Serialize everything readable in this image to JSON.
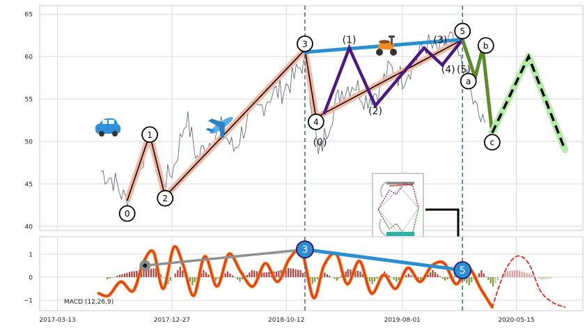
{
  "colors": {
    "price": "#4d5a6b",
    "grid": "#d9d9d9",
    "frame": "#c8c8c8",
    "vline": "#4f6d8a",
    "trend_main": "#000000",
    "trend_glow": "#f3b9a4",
    "channel_blue": "#2a8fd1",
    "wave_purple": "#4b1a7f",
    "wave_green": "#5e8a2e",
    "forecast_glow": "#b5ecab",
    "macd_line": "#d93a2c",
    "macd_glow": "#f0921e",
    "hist_pos": "#a52a2a",
    "hist_neg": "#6b8e23"
  },
  "icons": [
    "car-emoji-icon",
    "airplane-emoji-icon",
    "scooter-emoji-icon",
    "elliott-wave-thumbnail-icon"
  ],
  "chart_data": [
    {
      "type": "line",
      "panel": "price",
      "ylim": [
        39.5,
        66
      ],
      "yticks": [
        "40",
        "45",
        "50",
        "55",
        "60",
        "65"
      ],
      "grid": true,
      "price_series": {
        "x": [
          "2017-07-01",
          "2017-08-01",
          "2017-09-01",
          "2017-10-01",
          "2017-11-01",
          "2017-12-01",
          "2018-01-01",
          "2018-02-01",
          "2018-03-01",
          "2018-04-01",
          "2018-05-01",
          "2018-06-01",
          "2018-07-01",
          "2018-08-01",
          "2018-09-01",
          "2018-10-01",
          "2018-11-01",
          "2018-12-01",
          "2019-01-01",
          "2019-02-01",
          "2019-03-01",
          "2019-04-01",
          "2019-05-01",
          "2019-06-01",
          "2019-07-01",
          "2019-08-01",
          "2019-09-01",
          "2019-10-01",
          "2019-11-01",
          "2019-12-01",
          "2020-01-01",
          "2020-02-01",
          "2020-03-01"
        ],
        "values": [
          46.5,
          45.5,
          43.0,
          46.5,
          50.5,
          44.5,
          47.0,
          53.0,
          48.0,
          50.0,
          51.5,
          49.0,
          52.0,
          53.5,
          55.5,
          56.0,
          57.5,
          60.0,
          48.0,
          53.0,
          56.0,
          57.0,
          55.0,
          56.0,
          58.5,
          57.5,
          59.5,
          61.5,
          60.5,
          62.0,
          58.5,
          54.0,
          51.0
        ]
      },
      "waves": [
        {
          "name": "primary",
          "x": [
            "2017-09-05",
            "2017-11-01",
            "2017-12-10",
            "2018-11-28",
            "2018-12-26",
            "2019-12-31"
          ],
          "values": [
            43.0,
            50.8,
            43.5,
            60.8,
            52.8,
            62.0
          ]
        },
        {
          "name": "channel",
          "x": [
            "2018-11-28",
            "2019-12-31"
          ],
          "values": [
            60.5,
            62.0
          ]
        },
        {
          "name": "wave-5-impulse",
          "x": [
            "2019-01-15",
            "2019-03-20",
            "2019-05-25",
            "2019-09-25",
            "2019-11-10",
            "2019-12-31"
          ],
          "values": [
            53.2,
            61.0,
            54.2,
            61.0,
            59.0,
            62.0
          ]
        },
        {
          "name": "correction-abc",
          "x": [
            "2019-12-31",
            "2020-02-01",
            "2020-02-20",
            "2020-03-15"
          ],
          "values": [
            62.0,
            57.5,
            61.0,
            51.0
          ]
        },
        {
          "name": "forecast",
          "x": [
            "2020-03-15",
            "2020-06-15",
            "2020-09-15"
          ],
          "values": [
            51.0,
            60.0,
            49.0
          ]
        }
      ],
      "wave_labels": [
        {
          "text": "0",
          "x": "2017-09-05",
          "y": 41.5,
          "circled": true
        },
        {
          "text": "1",
          "x": "2017-11-01",
          "y": 50.8,
          "circled": true
        },
        {
          "text": "2",
          "x": "2017-12-10",
          "y": 43.3,
          "circled": true
        },
        {
          "text": "3",
          "x": "2018-11-28",
          "y": 61.5,
          "circled": true
        },
        {
          "text": "4",
          "x": "2018-12-26",
          "y": 52.3,
          "circled": true
        },
        {
          "text": "5",
          "x": "2019-12-31",
          "y": 63.0,
          "circled": true
        },
        {
          "text": "(0)",
          "x": "2019-01-05",
          "y": 49.9,
          "circled": false
        },
        {
          "text": "(1)",
          "x": "2019-03-20",
          "y": 62.0,
          "circled": false
        },
        {
          "text": "(2)",
          "x": "2019-05-25",
          "y": 53.6,
          "circled": false
        },
        {
          "text": "(3)",
          "x": "2019-11-05",
          "y": 62.0,
          "circled": false
        },
        {
          "text": "(4)",
          "x": "2019-11-25",
          "y": 58.5,
          "circled": false
        },
        {
          "text": "(5)",
          "x": "2020-01-03",
          "y": 58.5,
          "circled": false
        },
        {
          "text": "a",
          "x": "2020-01-15",
          "y": 57.1,
          "circled": true
        },
        {
          "text": "b",
          "x": "2020-02-28",
          "y": 61.3,
          "circled": true
        },
        {
          "text": "c",
          "x": "2020-03-15",
          "y": 49.9,
          "circled": true
        }
      ],
      "vlines": [
        "2018-11-28",
        "2019-12-31"
      ]
    },
    {
      "type": "line",
      "panel": "macd",
      "ylim": [
        -1.45,
        1.75
      ],
      "yticks": [
        "1",
        "0",
        "−1"
      ],
      "xticks": [
        "2017-03-13",
        "2017-12-27",
        "2018-10-12",
        "2019-08-01",
        "2020-05-15"
      ],
      "macd_label": "MACD (12,26,9)",
      "macd": {
        "x": [
          "2017-06-25",
          "2017-07-20",
          "2017-08-20",
          "2017-09-20",
          "2017-10-15",
          "2017-11-10",
          "2017-12-05",
          "2018-01-01",
          "2018-01-25",
          "2018-02-20",
          "2018-03-20",
          "2018-04-20",
          "2018-05-20",
          "2018-06-20",
          "2018-07-20",
          "2018-08-20",
          "2018-09-20",
          "2018-10-20",
          "2018-11-20",
          "2018-12-20",
          "2019-01-15",
          "2019-02-15",
          "2019-03-15",
          "2019-04-15",
          "2019-05-15",
          "2019-06-15",
          "2019-07-15",
          "2019-08-15",
          "2019-09-15",
          "2019-10-15",
          "2019-11-15",
          "2019-12-15",
          "2020-01-15",
          "2020-02-15",
          "2020-03-15"
        ],
        "values": [
          -0.7,
          -0.8,
          -0.2,
          -0.6,
          0.6,
          1.1,
          -0.5,
          1.3,
          0.5,
          -0.8,
          0.9,
          -0.4,
          1.0,
          0.2,
          -0.4,
          0.6,
          -0.2,
          0.8,
          1.1,
          -0.9,
          0.5,
          1.0,
          -0.3,
          0.7,
          -0.7,
          0.1,
          -0.5,
          0.4,
          -0.2,
          0.5,
          0.6,
          -0.3,
          0.4,
          -0.5,
          -1.3
        ]
      },
      "histogram": {
        "x": [
          "2017-07-15",
          "2017-08-15",
          "2017-09-15",
          "2017-10-15",
          "2017-11-15",
          "2017-12-15",
          "2018-01-15",
          "2018-02-15",
          "2018-03-15",
          "2018-04-15",
          "2018-05-15",
          "2018-06-15",
          "2018-07-15",
          "2018-08-15",
          "2018-09-15",
          "2018-10-15",
          "2018-11-15",
          "2018-12-15",
          "2019-01-15",
          "2019-02-15",
          "2019-03-15",
          "2019-04-15",
          "2019-05-15",
          "2019-06-15",
          "2019-07-15",
          "2019-08-15",
          "2019-09-15",
          "2019-10-15",
          "2019-11-15",
          "2019-12-15",
          "2020-01-15",
          "2020-02-15",
          "2020-03-15",
          "2020-04-15",
          "2020-05-15",
          "2020-06-15",
          "2020-07-15",
          "2020-08-15"
        ],
        "values": [
          -0.1,
          0.1,
          0.25,
          0.3,
          0.4,
          -0.3,
          0.45,
          -0.35,
          0.3,
          -0.15,
          0.25,
          -0.2,
          0.3,
          0.2,
          0.25,
          0.4,
          0.3,
          -0.3,
          0.2,
          -0.15,
          0.35,
          0.25,
          -0.3,
          0.25,
          -0.2,
          0.15,
          -0.2,
          0.3,
          -0.15,
          0.1,
          -0.35,
          0.3,
          -0.4,
          0.25,
          0.3,
          0.15,
          -0.1,
          -0.05
        ]
      },
      "forecast": {
        "x": [
          "2020-03-15",
          "2020-04-15",
          "2020-05-15",
          "2020-06-15",
          "2020-07-15",
          "2020-08-15",
          "2020-09-15"
        ],
        "values": [
          -1.3,
          0.2,
          0.9,
          0.6,
          -0.6,
          -1.1,
          -1.3
        ]
      },
      "signal_connectors": [
        {
          "name": "wave-3-to-5-divergence",
          "x": [
            "2018-11-28",
            "2019-12-31"
          ],
          "values": [
            1.2,
            0.3
          ]
        },
        {
          "name": "earlier-divergence",
          "x": [
            "2017-10-20",
            "2018-11-28"
          ],
          "values": [
            0.5,
            1.2
          ]
        }
      ],
      "markers": [
        {
          "text": "3",
          "x": "2018-11-28",
          "y": 1.2
        },
        {
          "text": "5",
          "x": "2019-12-31",
          "y": 0.3
        }
      ]
    }
  ]
}
